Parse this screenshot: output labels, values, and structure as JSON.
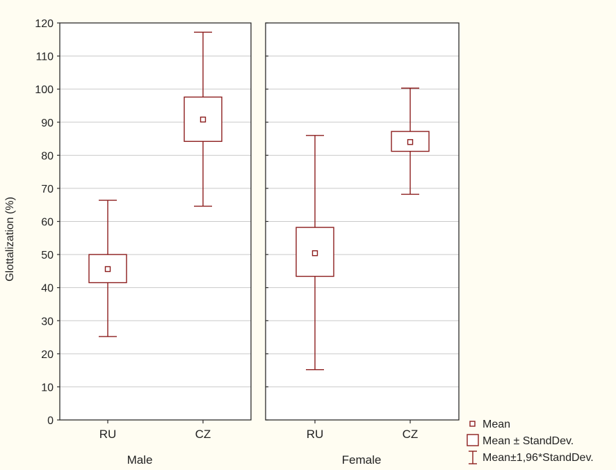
{
  "chart_data": {
    "type": "box",
    "ylabel": "Glottalization (%)",
    "ylim": [
      0,
      120
    ],
    "yticks": [
      0,
      10,
      20,
      30,
      40,
      50,
      60,
      70,
      80,
      90,
      100,
      110,
      120
    ],
    "grid": true,
    "colors": {
      "box": "#8b1c1c",
      "grid": "#c9c9c9",
      "frame": "#2b2b2b",
      "plot_bg": "#ffffff"
    },
    "panels": [
      {
        "label": "Male",
        "categories": [
          "RU",
          "CZ"
        ],
        "stats": [
          {
            "category": "RU",
            "mean": 45.6,
            "sd_low": 41.5,
            "sd_high": 50.0,
            "ci_low": 25.2,
            "ci_high": 66.4
          },
          {
            "category": "CZ",
            "mean": 90.8,
            "sd_low": 84.2,
            "sd_high": 97.6,
            "ci_low": 64.6,
            "ci_high": 117.2
          }
        ]
      },
      {
        "label": "Female",
        "categories": [
          "RU",
          "CZ"
        ],
        "stats": [
          {
            "category": "RU",
            "mean": 50.4,
            "sd_low": 43.4,
            "sd_high": 58.2,
            "ci_low": 15.2,
            "ci_high": 86.0
          },
          {
            "category": "CZ",
            "mean": 84.0,
            "sd_low": 81.2,
            "sd_high": 87.2,
            "ci_low": 68.2,
            "ci_high": 100.3
          }
        ]
      }
    ],
    "legend": {
      "position": "bottom-right",
      "items": [
        {
          "marker": "mean",
          "label": "Mean"
        },
        {
          "marker": "box",
          "label": "Mean ± StandDev."
        },
        {
          "marker": "whisker",
          "label": "Mean±1,96*StandDev."
        }
      ]
    }
  }
}
